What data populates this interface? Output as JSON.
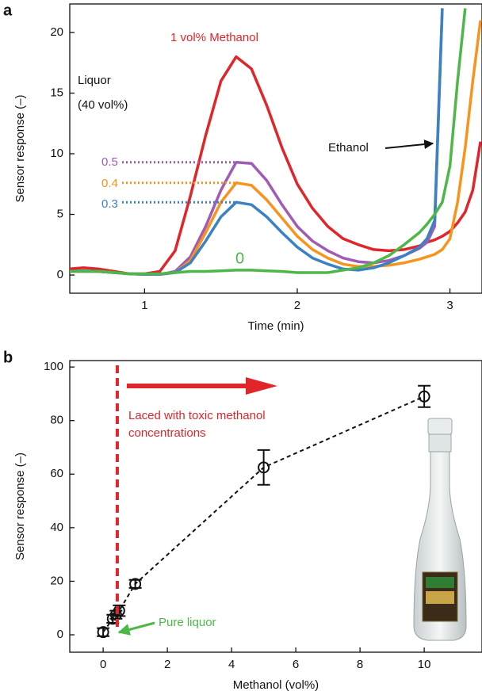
{
  "chart_data": [
    {
      "type": "line",
      "panel": "a",
      "x_label": "Time (min)",
      "y_label": "Sensor response (–)",
      "xlim": [
        0.51,
        3.21
      ],
      "ylim": [
        -1.5,
        22.35
      ],
      "xticks": [
        1,
        2,
        3
      ],
      "yticks": [
        0,
        5,
        10,
        15,
        20
      ],
      "x": [
        0.5,
        0.6,
        0.7,
        0.8,
        0.9,
        1.0,
        1.1,
        1.2,
        1.3,
        1.4,
        1.5,
        1.6,
        1.7,
        1.8,
        1.9,
        2.0,
        2.1,
        2.2,
        2.3,
        2.4,
        2.5,
        2.6,
        2.7,
        2.8,
        2.85,
        2.9,
        2.95,
        3.0,
        3.05,
        3.1,
        3.15,
        3.2
      ],
      "series": [
        {
          "name": "1 vol% Methanol",
          "color": "#e0262a",
          "values": [
            0.5,
            0.6,
            0.5,
            0.3,
            0.1,
            0.1,
            0.3,
            2,
            6.5,
            11.5,
            16,
            18,
            17,
            14,
            10.5,
            7.5,
            5.5,
            4,
            3,
            2.5,
            2.1,
            2,
            2.1,
            2.4,
            2.7,
            2.9,
            3.2,
            3.6,
            4.3,
            5.2,
            7,
            11
          ]
        },
        {
          "name": "0.5",
          "color": "#a05bb5",
          "values": [
            0.3,
            0.3,
            0.3,
            0.2,
            0.1,
            0.05,
            0.05,
            0.3,
            1.5,
            4,
            7,
            9.3,
            9.2,
            7.8,
            5.8,
            4,
            2.8,
            2,
            1.4,
            1.1,
            1,
            1.2,
            1.6,
            2.2,
            2.7,
            4,
            22,
            null,
            null,
            null,
            null,
            null
          ]
        },
        {
          "name": "0.4",
          "color": "#f7941d",
          "values": [
            0.3,
            0.3,
            0.3,
            0.2,
            0.1,
            0.05,
            0.05,
            0.2,
            1.2,
            3.5,
            6,
            7.6,
            7.4,
            6.2,
            4.7,
            3.2,
            2.1,
            1.4,
            0.9,
            0.7,
            0.7,
            0.8,
            1,
            1.3,
            1.5,
            1.7,
            2.1,
            3,
            6,
            10.5,
            16,
            21
          ]
        },
        {
          "name": "0.3",
          "color": "#3b82c4",
          "values": [
            0.3,
            0.35,
            0.3,
            0.2,
            0.1,
            0.05,
            0.05,
            0.2,
            1,
            2.8,
            4.8,
            6,
            5.8,
            4.8,
            3.5,
            2.3,
            1.4,
            0.9,
            0.5,
            0.4,
            0.6,
            1,
            1.6,
            2.3,
            3,
            4.5,
            22,
            null,
            null,
            null,
            null,
            null
          ]
        },
        {
          "name": "0",
          "color": "#4db848",
          "values": [
            0.3,
            0.3,
            0.3,
            0.2,
            0.1,
            0.1,
            0.1,
            0.2,
            0.3,
            0.3,
            0.35,
            0.4,
            0.4,
            0.35,
            0.3,
            0.2,
            0.2,
            0.2,
            0.4,
            0.6,
            1,
            1.6,
            2.5,
            3.5,
            4.2,
            5,
            6,
            9,
            16,
            22,
            null,
            null
          ]
        }
      ],
      "annotations": [
        "Liquor",
        "(40 vol%)",
        "Ethanol"
      ]
    },
    {
      "type": "errorbar",
      "panel": "b",
      "x_label": "Methanol (vol%)",
      "y_label": "Sensor response (–)",
      "xlim": [
        -1.04,
        11.8
      ],
      "ylim": [
        -6.5,
        102.4
      ],
      "xticks": [
        0,
        2,
        4,
        6,
        8,
        10
      ],
      "yticks": [
        0,
        20,
        40,
        60,
        80,
        100
      ],
      "x": [
        0,
        0.3,
        0.4,
        0.5,
        1,
        5,
        10
      ],
      "values": [
        1,
        6,
        7.5,
        9,
        19,
        62.5,
        89
      ],
      "errors": [
        1.5,
        1.5,
        1.5,
        2,
        1.5,
        6.5,
        4
      ],
      "threshold_x": 0.44,
      "threshold_color": "#e0262a",
      "annotations": [
        [
          "Laced with toxic methanol",
          "concentrations"
        ],
        "Pure liquor"
      ]
    }
  ]
}
